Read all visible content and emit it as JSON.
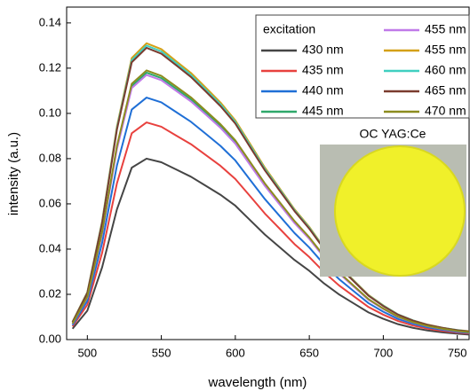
{
  "chart_data": {
    "type": "line",
    "x_label": "wavelength (nm)",
    "y_label": "intensity (a.u.)",
    "legend_title": "excitation",
    "inset_label": "OC YAG:Ce",
    "x": [
      490,
      500,
      510,
      520,
      530,
      540,
      550,
      560,
      570,
      580,
      590,
      600,
      610,
      620,
      630,
      640,
      650,
      660,
      670,
      680,
      690,
      700,
      710,
      720,
      730,
      740,
      750,
      758
    ],
    "xlim": [
      486,
      758
    ],
    "xticks": [
      500,
      550,
      600,
      650,
      700,
      750
    ],
    "ylim": [
      0,
      0.147
    ],
    "yticks": [
      {
        "value": 0,
        "label": "0.00"
      },
      {
        "value": 0.02,
        "label": "0.02"
      },
      0.04,
      0.06,
      0.08,
      {
        "value": 0.1,
        "label": "0.10"
      },
      0.12,
      0.14
    ],
    "series": [
      {
        "name": "430 nm",
        "color": "#454545",
        "values": [
          0.0048,
          0.0128,
          0.032,
          0.0576,
          0.076,
          0.08,
          0.0784,
          0.0752,
          0.072,
          0.068,
          0.064,
          0.0592,
          0.0528,
          0.0464,
          0.0408,
          0.0352,
          0.0304,
          0.0248,
          0.02,
          0.016,
          0.012,
          0.0092,
          0.0068,
          0.0052,
          0.004,
          0.0032,
          0.0026,
          0.0022
        ]
      },
      {
        "name": "435 nm",
        "color": "#e8413e",
        "values": [
          0.0058,
          0.0154,
          0.0384,
          0.0691,
          0.0912,
          0.096,
          0.0941,
          0.0902,
          0.0864,
          0.0816,
          0.0768,
          0.071,
          0.0634,
          0.0557,
          0.049,
          0.0422,
          0.0365,
          0.0298,
          0.024,
          0.0192,
          0.0144,
          0.011,
          0.0082,
          0.0062,
          0.0048,
          0.0038,
          0.0031,
          0.0027
        ]
      },
      {
        "name": "440 nm",
        "color": "#1f6fd6",
        "values": [
          0.0064,
          0.0171,
          0.0428,
          0.077,
          0.1017,
          0.107,
          0.1049,
          0.1006,
          0.0963,
          0.091,
          0.0856,
          0.0792,
          0.0706,
          0.0621,
          0.0546,
          0.0471,
          0.0407,
          0.0332,
          0.0268,
          0.0214,
          0.0161,
          0.0123,
          0.0091,
          0.007,
          0.0054,
          0.0043,
          0.0034,
          0.003
        ]
      },
      {
        "name": "445 nm",
        "color": "#2ea86a",
        "values": [
          0.0071,
          0.0189,
          0.0472,
          0.085,
          0.1121,
          0.118,
          0.1156,
          0.1109,
          0.1062,
          0.1003,
          0.0944,
          0.0873,
          0.0779,
          0.0684,
          0.0602,
          0.0519,
          0.0448,
          0.0366,
          0.0295,
          0.0236,
          0.0177,
          0.0136,
          0.01,
          0.0077,
          0.0059,
          0.0047,
          0.0038,
          0.0033
        ]
      },
      {
        "name": "455 nm",
        "color": "#c07ae8",
        "values": [
          0.007,
          0.0187,
          0.0468,
          0.0842,
          0.1112,
          0.117,
          0.1147,
          0.11,
          0.1053,
          0.0995,
          0.0936,
          0.0866,
          0.0772,
          0.0679,
          0.0597,
          0.0515,
          0.0445,
          0.0363,
          0.0293,
          0.0234,
          0.0176,
          0.0135,
          0.0099,
          0.0076,
          0.0059,
          0.0047,
          0.0037,
          0.0033
        ]
      },
      {
        "name": "455 nm",
        "color": "#d4a017",
        "values": [
          0.0079,
          0.021,
          0.0524,
          0.0943,
          0.1245,
          0.131,
          0.1284,
          0.1231,
          0.1179,
          0.1114,
          0.1048,
          0.0969,
          0.0865,
          0.076,
          0.0668,
          0.0576,
          0.0498,
          0.0406,
          0.0328,
          0.0262,
          0.0197,
          0.0151,
          0.0111,
          0.0085,
          0.0066,
          0.0052,
          0.0042,
          0.0037
        ]
      },
      {
        "name": "460 nm",
        "color": "#3fcfc0",
        "values": [
          0.0078,
          0.0208,
          0.052,
          0.0936,
          0.1235,
          0.13,
          0.1274,
          0.1222,
          0.117,
          0.1105,
          0.104,
          0.0962,
          0.0858,
          0.0754,
          0.0663,
          0.0572,
          0.0494,
          0.0403,
          0.0325,
          0.026,
          0.0195,
          0.015,
          0.0111,
          0.0085,
          0.0065,
          0.0052,
          0.0042,
          0.0036
        ]
      },
      {
        "name": "465 nm",
        "color": "#7a3b2e",
        "values": [
          0.0077,
          0.0206,
          0.0516,
          0.0929,
          0.1226,
          0.129,
          0.1264,
          0.1213,
          0.1161,
          0.1097,
          0.1032,
          0.0955,
          0.0851,
          0.0748,
          0.0658,
          0.0568,
          0.049,
          0.04,
          0.0323,
          0.0258,
          0.0194,
          0.0148,
          0.011,
          0.0084,
          0.0065,
          0.0052,
          0.0041,
          0.0036
        ]
      },
      {
        "name": "470 nm",
        "color": "#8c8c1e",
        "values": [
          0.0071,
          0.019,
          0.0476,
          0.0857,
          0.1131,
          0.119,
          0.1166,
          0.1119,
          0.1071,
          0.1012,
          0.0952,
          0.0881,
          0.0785,
          0.069,
          0.0607,
          0.0524,
          0.0452,
          0.0369,
          0.0298,
          0.0238,
          0.0179,
          0.0137,
          0.0101,
          0.0077,
          0.006,
          0.0048,
          0.0038,
          0.0033
        ]
      }
    ]
  }
}
